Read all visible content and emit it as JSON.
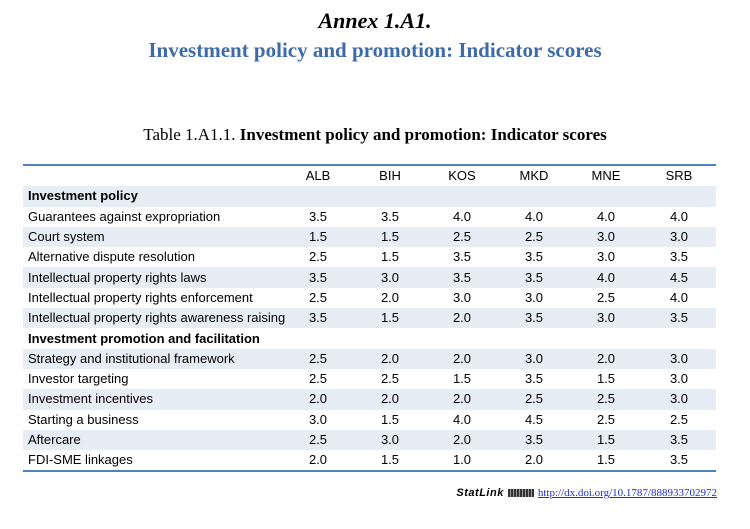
{
  "annex": {
    "title": "Annex 1.A1.",
    "subtitle": "Investment policy and promotion: Indicator scores"
  },
  "table": {
    "caption_prefix": "Table 1.A1.1.",
    "caption_title": "Investment policy and promotion: Indicator scores",
    "columns": [
      "",
      "ALB",
      "BIH",
      "KOS",
      "MKD",
      "MNE",
      "SRB"
    ],
    "rows": [
      {
        "type": "section",
        "label": "Investment policy",
        "values": [
          "",
          "",
          "",
          "",
          "",
          ""
        ]
      },
      {
        "type": "data",
        "label": "Guarantees against expropriation",
        "values": [
          "3.5",
          "3.5",
          "4.0",
          "4.0",
          "4.0",
          "4.0"
        ]
      },
      {
        "type": "data",
        "label": "Court system",
        "values": [
          "1.5",
          "1.5",
          "2.5",
          "2.5",
          "3.0",
          "3.0"
        ]
      },
      {
        "type": "data",
        "label": "Alternative dispute resolution",
        "values": [
          "2.5",
          "1.5",
          "3.5",
          "3.5",
          "3.0",
          "3.5"
        ]
      },
      {
        "type": "data",
        "label": "Intellectual property rights laws",
        "values": [
          "3.5",
          "3.0",
          "3.5",
          "3.5",
          "4.0",
          "4.5"
        ]
      },
      {
        "type": "data",
        "label": "Intellectual property rights enforcement",
        "values": [
          "2.5",
          "2.0",
          "3.0",
          "3.0",
          "2.5",
          "4.0"
        ]
      },
      {
        "type": "data",
        "label": "Intellectual property rights awareness raising",
        "values": [
          "3.5",
          "1.5",
          "2.0",
          "3.5",
          "3.0",
          "3.5"
        ]
      },
      {
        "type": "section",
        "label": "Investment promotion and facilitation",
        "values": [
          "",
          "",
          "",
          "",
          "",
          ""
        ]
      },
      {
        "type": "data",
        "label": "Strategy and institutional framework",
        "values": [
          "2.5",
          "2.0",
          "2.0",
          "3.0",
          "2.0",
          "3.0"
        ]
      },
      {
        "type": "data",
        "label": "Investor targeting",
        "values": [
          "2.5",
          "2.5",
          "1.5",
          "3.5",
          "1.5",
          "3.0"
        ]
      },
      {
        "type": "data",
        "label": "Investment incentives",
        "values": [
          "2.0",
          "2.0",
          "2.0",
          "2.5",
          "2.5",
          "3.0"
        ]
      },
      {
        "type": "data",
        "label": "Starting a business",
        "values": [
          "3.0",
          "1.5",
          "4.0",
          "4.5",
          "2.5",
          "2.5"
        ]
      },
      {
        "type": "data",
        "label": "Aftercare",
        "values": [
          "2.5",
          "3.0",
          "2.0",
          "3.5",
          "1.5",
          "3.5"
        ]
      },
      {
        "type": "data",
        "label": "FDI-SME linkages",
        "values": [
          "2.0",
          "1.5",
          "1.0",
          "2.0",
          "1.5",
          "3.5"
        ]
      }
    ]
  },
  "statlink": {
    "brand": "StatLink",
    "url": "http://dx.doi.org/10.1787/888933702972"
  },
  "colors": {
    "subtitle": "#3e6ba8",
    "rule": "#4f81bd",
    "row_shade": "#e6edf5",
    "link": "#1a2fd1"
  }
}
